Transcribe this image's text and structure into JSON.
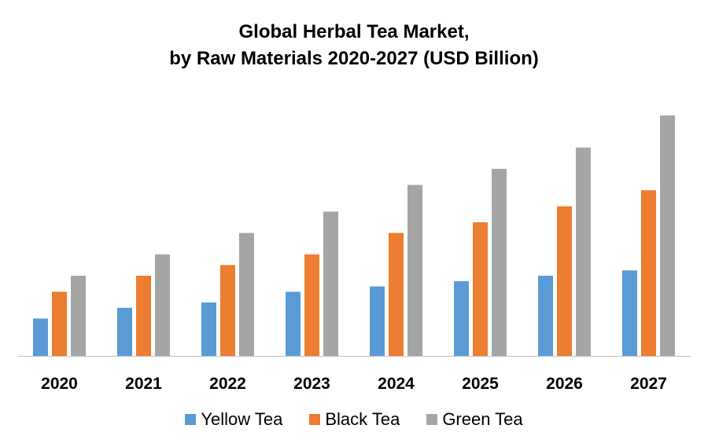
{
  "chart_data": {
    "type": "bar",
    "title": "Global Herbal Tea Market,",
    "subtitle": "by Raw Materials 2020-2027 (USD Billion)",
    "categories": [
      "2020",
      "2021",
      "2022",
      "2023",
      "2024",
      "2025",
      "2026",
      "2027"
    ],
    "series": [
      {
        "name": "Yellow Tea",
        "color": "#5B9BD5",
        "values": [
          0.7,
          0.9,
          1.0,
          1.2,
          1.3,
          1.4,
          1.5,
          1.6
        ]
      },
      {
        "name": "Black Tea",
        "color": "#ED7D31",
        "values": [
          1.2,
          1.5,
          1.7,
          1.9,
          2.3,
          2.5,
          2.8,
          3.1
        ]
      },
      {
        "name": "Green Tea",
        "color": "#A5A5A5",
        "values": [
          1.5,
          1.9,
          2.3,
          2.7,
          3.2,
          3.5,
          3.9,
          4.5
        ]
      }
    ],
    "xlabel": "",
    "ylabel": "",
    "ylim": [
      0,
      4.5
    ],
    "grid": false,
    "legend": "bottom"
  }
}
